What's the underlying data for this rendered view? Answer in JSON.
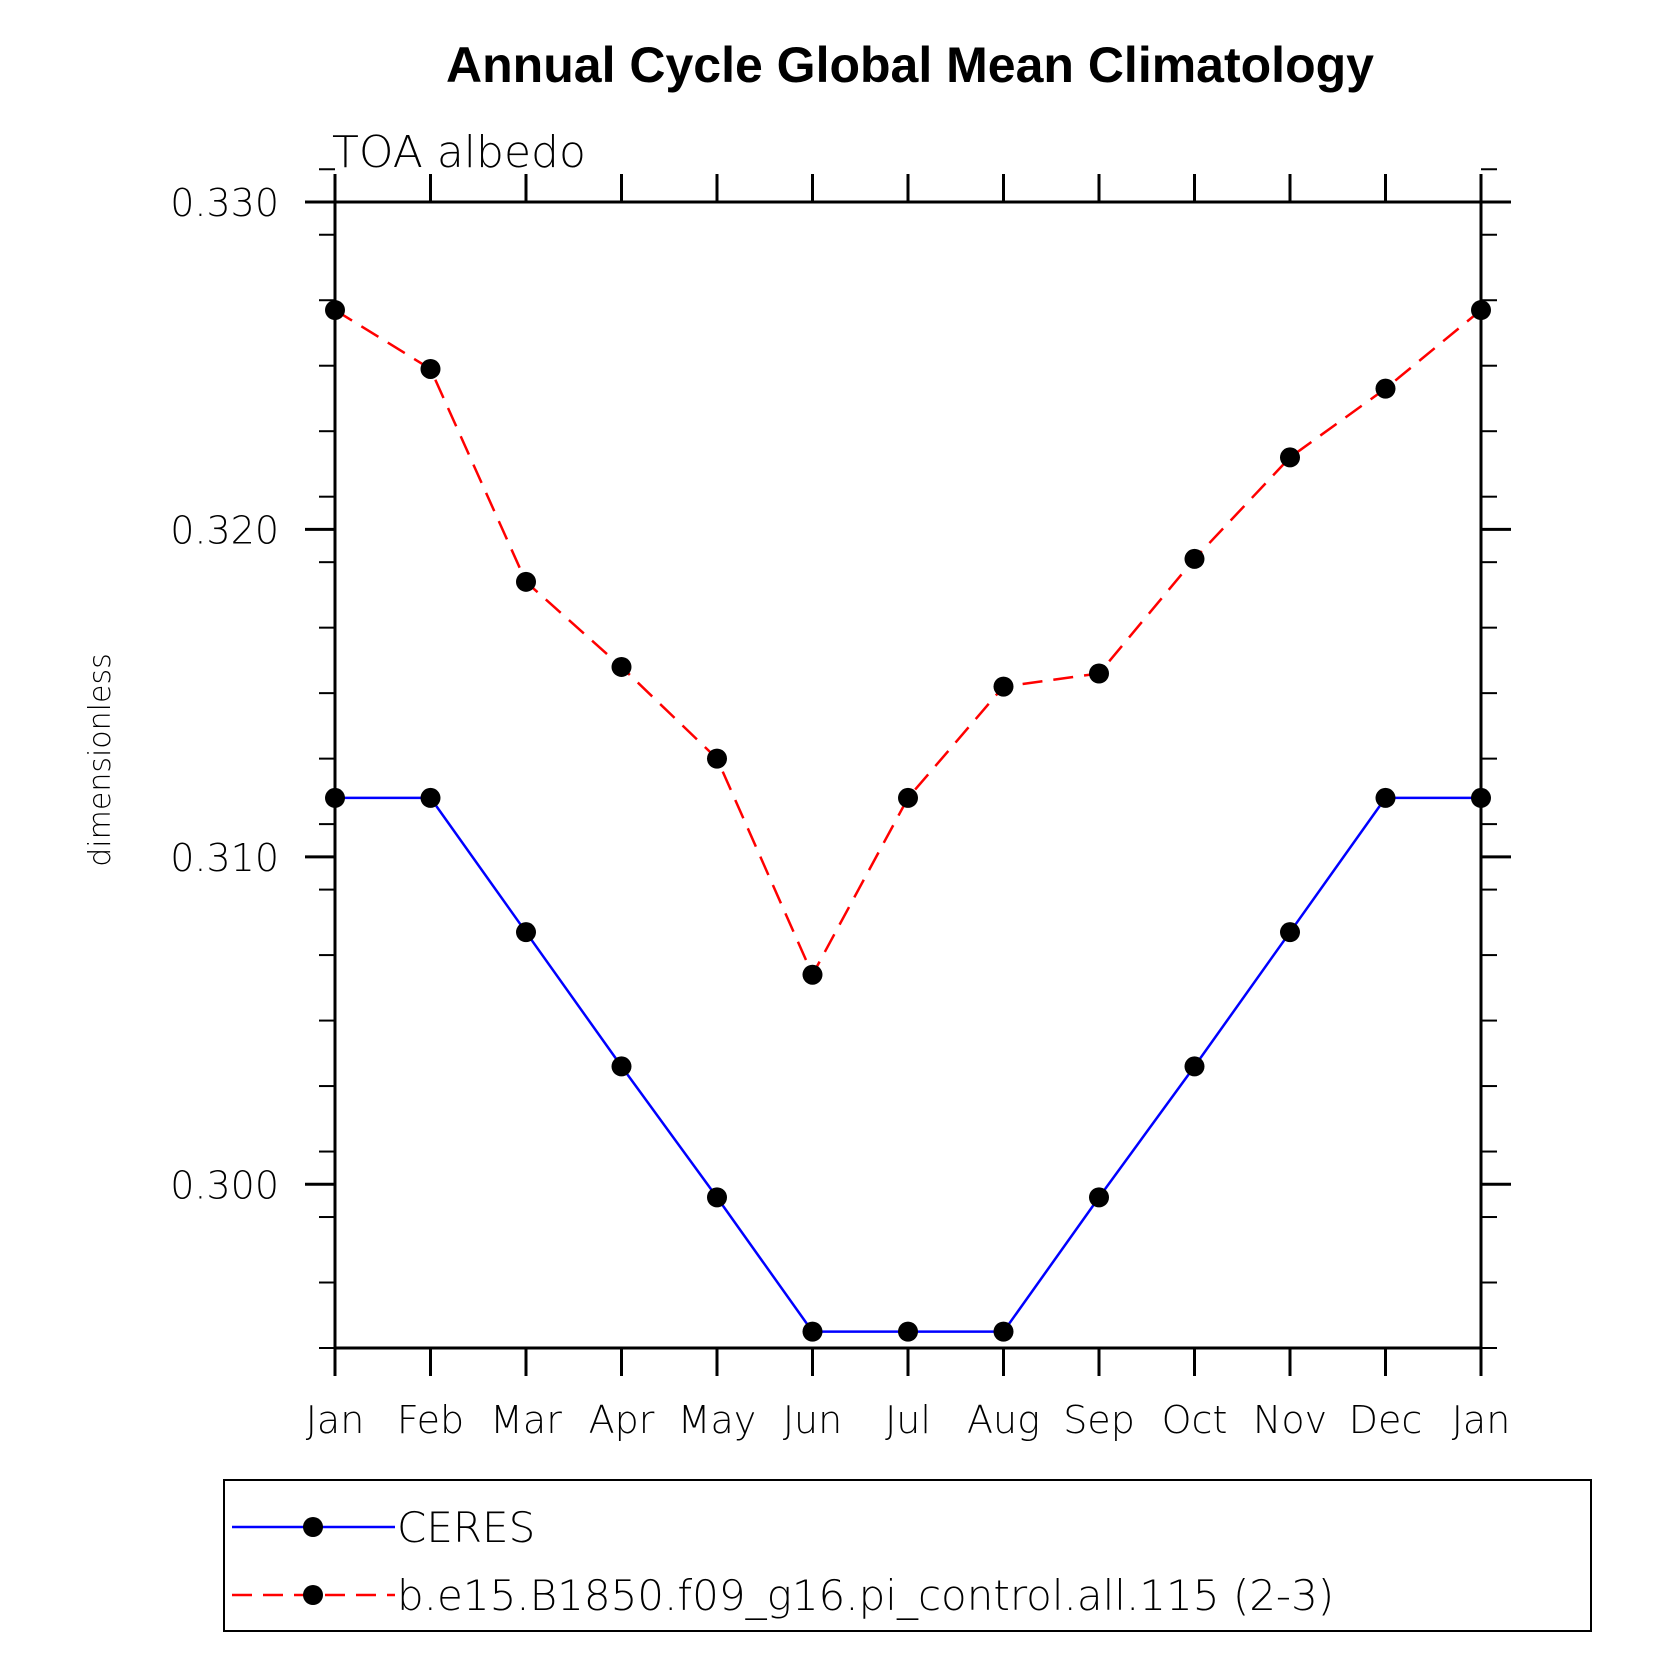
{
  "chart_data": {
    "type": "line",
    "title": "Annual Cycle Global Mean Climatology",
    "subtitle": "TOA albedo",
    "ylabel": "dimensionless",
    "xlabel": "",
    "categories": [
      "Jan",
      "Feb",
      "Mar",
      "Apr",
      "May",
      "Jun",
      "Jul",
      "Aug",
      "Sep",
      "Oct",
      "Nov",
      "Dec",
      "Jan"
    ],
    "ylim": [
      0.295,
      0.33
    ],
    "yticks": [
      0.3,
      0.31,
      0.32,
      0.33
    ],
    "ytick_labels": [
      "0.300",
      "0.310",
      "0.320",
      "0.330"
    ],
    "y_minor_step": 0.002,
    "legend_position": "bottom",
    "series": [
      {
        "name": "CERES",
        "color": "#0000ff",
        "line_style": "solid",
        "marker": "filled-circle",
        "values": [
          0.3118,
          0.3118,
          0.3077,
          0.3036,
          0.2996,
          0.2955,
          0.2955,
          0.2955,
          0.2996,
          0.3036,
          0.3077,
          0.3118,
          0.3118
        ]
      },
      {
        "name": "b.e15.B1850.f09_g16.pi_control.all.115 (2-3)",
        "color": "#ff0000",
        "line_style": "dashed",
        "marker": "filled-circle",
        "values": [
          0.3267,
          0.3249,
          0.3184,
          0.3158,
          0.313,
          0.3064,
          0.3118,
          0.3152,
          0.3156,
          0.3191,
          0.3222,
          0.3243,
          0.3267
        ]
      }
    ]
  }
}
